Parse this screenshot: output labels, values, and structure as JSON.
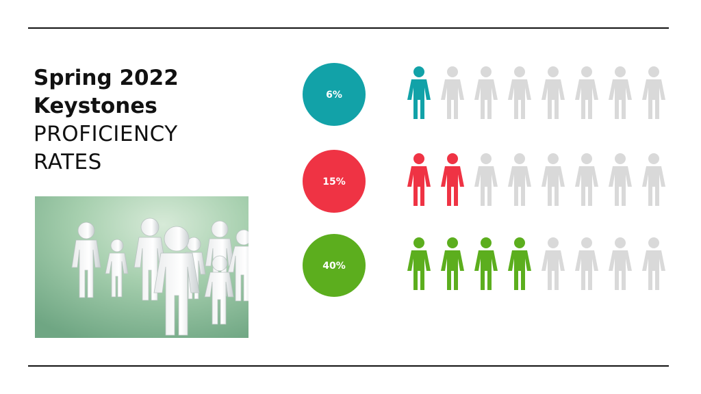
{
  "slide": {
    "title_line1": "Spring 2022",
    "title_line2": "Keystones",
    "subtitle_line1": "PROFICIENCY",
    "subtitle_line2": "RATES"
  },
  "photo": {
    "icon": "paper-people-figures-photo"
  },
  "chart_data": {
    "type": "pictograph",
    "title": "",
    "icon": "person-icon",
    "inactive_color": "#d9d9d9",
    "series": [
      {
        "label": "6%",
        "value": 6,
        "color": "#12a2a8"
      },
      {
        "label": "15%",
        "value": 15,
        "color": "#ef3344"
      },
      {
        "label": "40%",
        "value": 40,
        "color": "#5cae1e"
      }
    ]
  }
}
